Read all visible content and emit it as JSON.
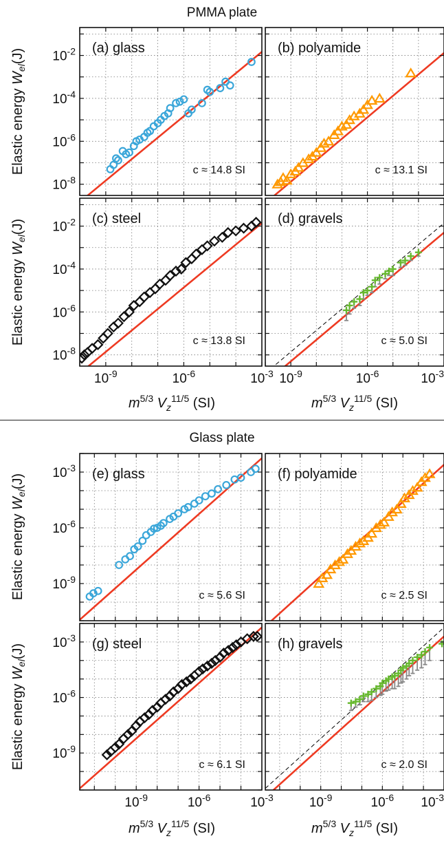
{
  "sections": [
    {
      "title": "PMMA plate",
      "ylabel": "Elastic energy Wₑₗ(J)",
      "xlabel": "m5/3 Vz11/5 (SI)"
    },
    {
      "title": "Glass plate",
      "ylabel": "Elastic energy Wₑₗ(J)",
      "xlabel": "m5/3 Vz11/5 (SI)"
    }
  ],
  "colors": {
    "fit_line": "#ee3a22",
    "glass": "#3aa6d9",
    "polyamide": "#ff9900",
    "steel": "#111111",
    "gravels": "#66b82e",
    "gravel_errorbar": "#888888",
    "reference": "#000000"
  },
  "chart_data": [
    {
      "type": "scatter",
      "panel": "(a) glass",
      "section": "PMMA plate",
      "marker": "circle",
      "color": "#3aa6d9",
      "annotation": "c ≈ 14.8 SI",
      "xscale": "log",
      "yscale": "log",
      "xlim": [
        1e-10,
        0.001
      ],
      "ylim": [
        3e-09,
        0.2
      ],
      "yticks": [
        1e-08,
        1e-06,
        0.0001,
        0.01
      ],
      "yticklabels": [
        "10-8",
        "10-6",
        "10-4",
        "10-2"
      ],
      "fit_line": {
        "c": 14.8
      },
      "x": [
        1.5e-09,
        2e-09,
        2.5e-09,
        3e-09,
        4.5e-09,
        6e-09,
        8e-09,
        1.2e-08,
        1.5e-08,
        2e-08,
        3e-08,
        4e-08,
        5e-08,
        7e-08,
        1e-07,
        1.3e-07,
        1.8e-07,
        2.5e-07,
        3e-07,
        5e-07,
        7e-07,
        1e-06,
        1.5e-06,
        2e-06,
        5e-06,
        8e-06,
        1e-05,
        2.5e-05,
        4e-05,
        6e-05,
        0.0004
      ],
      "y": [
        5e-08,
        8e-08,
        1.6e-07,
        1.3e-07,
        3.5e-07,
        2.5e-07,
        3e-07,
        6e-07,
        1e-06,
        1.2e-06,
        1.6e-06,
        2.5e-06,
        3e-06,
        5e-06,
        7e-06,
        1e-05,
        1.5e-05,
        2e-05,
        3.5e-05,
        6e-05,
        7e-05,
        9e-05,
        2e-05,
        3e-05,
        6e-05,
        0.00025,
        0.0002,
        0.0003,
        0.0006,
        0.0004,
        0.005
      ]
    },
    {
      "type": "scatter",
      "panel": "(b) polyamide",
      "section": "PMMA plate",
      "marker": "triangle",
      "color": "#ff9900",
      "annotation": "c ≈ 13.1 SI",
      "xscale": "log",
      "yscale": "log",
      "xlim": [
        1e-10,
        0.001
      ],
      "ylim": [
        3e-09,
        0.2
      ],
      "fit_line": {
        "c": 13.1
      },
      "x": [
        3e-10,
        4e-10,
        5e-10,
        7e-10,
        1e-09,
        1.5e-09,
        2e-09,
        3e-09,
        5e-09,
        7e-09,
        1e-08,
        1.5e-08,
        2e-08,
        3e-08,
        5e-08,
        7e-08,
        1e-07,
        1.5e-07,
        2e-07,
        3e-07,
        5e-07,
        7e-07,
        1e-06,
        1.5e-06,
        3e-06,
        5e-05
      ],
      "y": [
        1e-08,
        1.3e-08,
        2e-08,
        1.5e-08,
        3e-08,
        4e-08,
        6e-08,
        1e-07,
        1.5e-07,
        2e-07,
        3e-07,
        5e-07,
        8e-07,
        1e-06,
        2e-06,
        3e-06,
        5e-06,
        6e-06,
        1e-05,
        1.5e-05,
        2e-05,
        3e-05,
        5e-05,
        8e-05,
        0.0001,
        0.0015
      ]
    },
    {
      "type": "scatter",
      "panel": "(c) steel",
      "section": "PMMA plate",
      "marker": "diamond",
      "color": "#111111",
      "annotation": "c ≈ 13.8 SI",
      "xscale": "log",
      "yscale": "log",
      "xlim": [
        1e-10,
        0.001
      ],
      "ylim": [
        3e-09,
        0.2
      ],
      "yticks": [
        1e-08,
        1e-06,
        0.0001,
        0.01
      ],
      "yticklabels": [
        "10-8",
        "10-6",
        "10-4",
        "10-2"
      ],
      "xticks": [
        1e-09,
        1e-06,
        0.001
      ],
      "xticklabels": [
        "10-9",
        "10-6",
        "10-3"
      ],
      "fit_line": {
        "c": 13.8
      },
      "x": [
        1.2e-10,
        1.5e-10,
        2e-10,
        3e-10,
        5e-10,
        8e-10,
        1.2e-09,
        2e-09,
        3e-09,
        5e-09,
        8e-09,
        1.2e-08,
        2e-08,
        3e-08,
        5e-08,
        8e-08,
        1.2e-07,
        2e-07,
        3e-07,
        5e-07,
        8e-07,
        1.2e-06,
        2e-06,
        3e-06,
        5e-06,
        8e-06,
        1.5e-05,
        3e-05,
        5e-05,
        0.0001,
        0.0002,
        0.0004,
        0.0006
      ],
      "y": [
        7e-09,
        1e-08,
        1.3e-08,
        2e-08,
        3e-08,
        6e-08,
        1e-07,
        2e-07,
        3e-07,
        6e-07,
        1e-06,
        2e-06,
        3e-06,
        5e-06,
        8e-06,
        1.2e-05,
        2e-05,
        3e-05,
        5e-05,
        8e-05,
        0.0001,
        0.0002,
        0.0003,
        0.0005,
        0.0008,
        0.0012,
        0.002,
        0.003,
        0.005,
        0.006,
        0.008,
        0.01,
        0.015
      ]
    },
    {
      "type": "scatter",
      "panel": "(d) gravels",
      "section": "PMMA plate",
      "marker": "cross",
      "color": "#66b82e",
      "annotation": "c ≈ 5.0 SI",
      "xscale": "log",
      "yscale": "log",
      "xlim": [
        1e-10,
        0.001
      ],
      "ylim": [
        3e-09,
        0.2
      ],
      "fit_line": {
        "c": 5.0
      },
      "reference_line": {
        "c": 13.8,
        "style": "dashed"
      },
      "xticks": [
        1e-09,
        1e-06,
        0.001
      ],
      "xticklabels": [
        "10-9",
        "10-6",
        "10-3"
      ],
      "x": [
        1.5e-07,
        2e-07,
        3e-07,
        5e-07,
        7e-07,
        1e-06,
        1.5e-06,
        2e-06,
        3e-06,
        5e-06,
        7e-06,
        1e-05,
        2e-05,
        3e-05,
        5e-05,
        0.0001
      ],
      "y": [
        1.2e-06,
        2e-06,
        3e-06,
        4e-06,
        8e-06,
        1e-05,
        1.5e-05,
        3e-05,
        4e-05,
        6e-05,
        8e-05,
        0.0001,
        0.0002,
        0.00025,
        0.0004,
        0.0006
      ],
      "yerr_low": [
        8e-07,
        1.2e-06,
        1.5e-06,
        2e-06,
        4e-06,
        4e-06,
        7e-06,
        1.5e-05,
        2e-05,
        2.5e-05,
        3e-05,
        5e-05,
        8e-05,
        0.0001,
        0.00015,
        0.0002
      ]
    },
    {
      "type": "scatter",
      "panel": "(e) glass",
      "section": "Glass plate",
      "marker": "circle",
      "color": "#3aa6d9",
      "annotation": "c ≈ 5.6 SI",
      "xscale": "log",
      "yscale": "log",
      "xlim": [
        2e-12,
        0.001
      ],
      "ylim": [
        1e-11,
        0.01
      ],
      "yticks": [
        1e-09,
        1e-06,
        0.001
      ],
      "yticklabels": [
        "10-9",
        "10-6",
        "10-3"
      ],
      "fit_line": {
        "c": 5.6
      },
      "x": [
        6e-12,
        9e-12,
        1.5e-11,
        1.5e-10,
        3e-10,
        5e-10,
        8e-10,
        1.2e-09,
        2e-09,
        3e-09,
        5e-09,
        7e-09,
        1e-08,
        1.5e-08,
        2e-08,
        4e-08,
        6e-08,
        1e-07,
        2e-07,
        3e-07,
        6e-07,
        1e-06,
        2e-06,
        4e-06,
        8e-06,
        2e-05,
        5e-05,
        0.0001,
        0.0003,
        0.0005
      ],
      "y": [
        2e-10,
        3e-10,
        4e-10,
        1e-08,
        2e-08,
        3e-08,
        7e-08,
        1e-07,
        2e-07,
        4e-07,
        6e-07,
        9e-07,
        1e-06,
        1.3e-06,
        1.8e-06,
        3e-06,
        4e-06,
        6e-06,
        1e-05,
        1.3e-05,
        2e-05,
        3e-05,
        5e-05,
        7e-05,
        0.00012,
        0.0002,
        0.0004,
        0.0005,
        0.001,
        0.0015
      ]
    },
    {
      "type": "scatter",
      "panel": "(f) polyamide",
      "section": "Glass plate",
      "marker": "triangle",
      "color": "#ff9900",
      "annotation": "c ≈ 2.5 SI",
      "xscale": "log",
      "yscale": "log",
      "xlim": [
        2e-12,
        0.001
      ],
      "ylim": [
        1e-11,
        0.01
      ],
      "fit_line": {
        "c": 2.5
      },
      "x": [
        8e-10,
        1.2e-09,
        2e-09,
        3e-09,
        5e-09,
        8e-09,
        1.2e-08,
        2e-08,
        3e-08,
        5e-08,
        8e-08,
        1.2e-07,
        2e-07,
        3e-07,
        5e-07,
        8e-07,
        1.2e-06,
        2e-06,
        3e-06,
        5e-06,
        8e-06,
        1.2e-05,
        2e-05,
        3e-05,
        5e-05,
        8e-05,
        0.00012,
        0.0002
      ],
      "y": [
        1e-09,
        2e-09,
        3e-09,
        6e-09,
        1e-08,
        1.5e-08,
        2e-08,
        4e-08,
        6e-08,
        1e-07,
        1.5e-07,
        2e-07,
        3e-07,
        5e-07,
        1e-06,
        1.5e-06,
        2e-06,
        4e-06,
        7e-06,
        1e-05,
        2e-05,
        4e-05,
        6e-05,
        0.0001,
        0.00015,
        0.0003,
        0.0005,
        0.0008
      ]
    },
    {
      "type": "scatter",
      "panel": "(g) steel",
      "section": "Glass plate",
      "marker": "diamond",
      "color": "#111111",
      "annotation": "c ≈ 6.1 SI",
      "xscale": "log",
      "yscale": "log",
      "xlim": [
        2e-12,
        0.001
      ],
      "ylim": [
        1e-11,
        0.01
      ],
      "yticks": [
        1e-09,
        1e-06,
        0.001
      ],
      "yticklabels": [
        "10-9",
        "10-6",
        "10-3"
      ],
      "xticks": [
        1e-09,
        1e-06,
        0.001
      ],
      "xticklabels": [
        "10-9",
        "10-6",
        "10-3"
      ],
      "fit_line": {
        "c": 6.1
      },
      "x": [
        4e-11,
        6e-11,
        1e-10,
        1.5e-10,
        2.5e-10,
        4e-10,
        6e-10,
        1e-09,
        1.5e-09,
        2.5e-09,
        4e-09,
        6e-09,
        1e-08,
        1.5e-08,
        2.5e-08,
        4e-08,
        6e-08,
        1e-07,
        1.5e-07,
        2.5e-07,
        4e-07,
        6e-07,
        1e-06,
        1.5e-06,
        2.5e-06,
        4e-06,
        6e-06,
        1e-05,
        1.5e-05,
        2.5e-05,
        4e-05,
        6e-05,
        0.0001,
        0.0002,
        0.0004,
        0.0006
      ],
      "y": [
        8e-10,
        1.2e-09,
        2e-09,
        3e-09,
        6e-09,
        1e-08,
        1.5e-08,
        3e-08,
        5e-08,
        8e-08,
        1.2e-07,
        2e-07,
        3e-07,
        5e-07,
        8e-07,
        1.2e-06,
        2e-06,
        3e-06,
        5e-06,
        7e-06,
        1e-05,
        1.5e-05,
        2.5e-05,
        3.5e-05,
        5e-05,
        7e-05,
        0.0001,
        0.00015,
        0.00025,
        0.00035,
        0.0005,
        0.0007,
        0.001,
        0.0015,
        0.002,
        0.002
      ]
    },
    {
      "type": "scatter",
      "panel": "(h) gravels",
      "section": "Glass plate",
      "marker": "cross",
      "color": "#66b82e",
      "annotation": "c ≈ 2.0 SI",
      "xscale": "log",
      "yscale": "log",
      "xlim": [
        2e-12,
        0.001
      ],
      "ylim": [
        1e-11,
        0.01
      ],
      "fit_line": {
        "c": 2.0
      },
      "reference_line": {
        "c": 6.1,
        "style": "dashed"
      },
      "xticks": [
        1e-09,
        1e-06,
        0.001
      ],
      "xticklabels": [
        "10-9",
        "10-6",
        "10-3"
      ],
      "x": [
        3e-08,
        5e-08,
        8e-08,
        1.2e-07,
        2e-07,
        3e-07,
        5e-07,
        8e-07,
        1e-06,
        1.5e-06,
        2e-06,
        3e-06,
        4e-06,
        6e-06,
        8e-06,
        1e-05,
        1.5e-05,
        2e-05,
        3e-05,
        5e-05,
        8e-05,
        0.00012,
        0.0002,
        0.0008
      ],
      "y": [
        5e-07,
        6e-07,
        8e-07,
        1.2e-06,
        1.5e-06,
        2e-06,
        3e-06,
        4e-06,
        6e-06,
        8e-06,
        1e-05,
        1.3e-05,
        1.5e-05,
        2e-05,
        3e-05,
        4e-05,
        5e-05,
        7e-05,
        0.0001,
        0.00015,
        0.0002,
        0.0003,
        0.0005,
        0.0008
      ],
      "yerr_low": [
        3e-07,
        3e-07,
        4e-07,
        6e-07,
        9e-07,
        1.3e-06,
        2e-06,
        2.7e-06,
        4.5e-06,
        5.8e-06,
        7.5e-06,
        1e-05,
        1.2e-05,
        1.6e-05,
        2.4e-05,
        3.3e-05,
        4e-05,
        5.5e-05,
        8e-05,
        0.00012,
        0.00016,
        0.00024,
        0.0004,
        0
      ]
    }
  ]
}
